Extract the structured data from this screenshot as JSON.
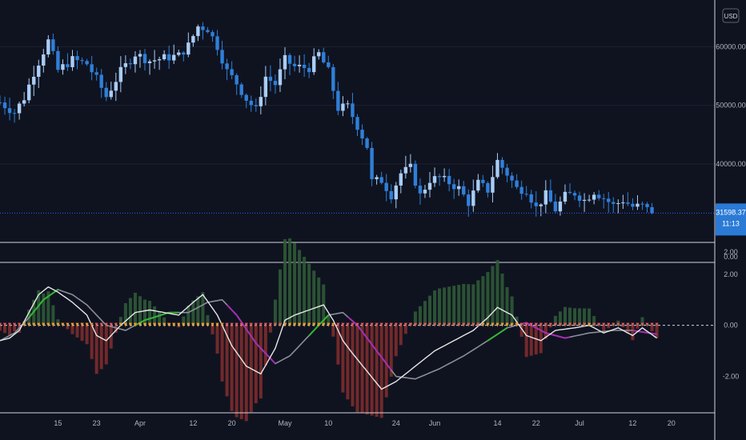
{
  "currency": "USD",
  "last_price": {
    "value": "31598.37",
    "countdown": "11:13"
  },
  "colors": {
    "background": "#0f1320",
    "candle_up": "#a9cdf5",
    "candle_down": "#2f7fd8",
    "price_line": "#2962ff",
    "price_tag_bg": "#2a7ad6",
    "signal_line": "#e6e6e6",
    "macd_bull": "#31b831",
    "macd_bear": "#a42fb0",
    "slow_line": "#8a8e98",
    "hist_up": "#2f5a36",
    "hist_down": "#7e2c2c",
    "dot_orange": "#f39c34",
    "dot_red": "#e05c5c",
    "grid": "#1c2030",
    "separator": "#d1d4dc"
  },
  "chart_data": [
    {
      "type": "candlestick",
      "name": "price",
      "y_ticks": [
        "60000.00",
        "50000.00",
        "40000.00"
      ],
      "y_tick_values": [
        60000,
        50000,
        40000
      ],
      "ylim": [
        27000,
        68000
      ],
      "x_ticks": [
        "15",
        "23",
        "Apr",
        "12",
        "20",
        "May",
        "10",
        "24",
        "Jun",
        "14",
        "22",
        "Jul",
        "12",
        "20"
      ],
      "x_tick_dates": [
        "2021-03-15",
        "2021-03-23",
        "2021-04-01",
        "2021-04-12",
        "2021-04-20",
        "2021-05-01",
        "2021-05-10",
        "2021-05-24",
        "2021-06-01",
        "2021-06-14",
        "2021-06-22",
        "2021-07-01",
        "2021-07-12",
        "2021-07-20"
      ],
      "x_range": [
        "2021-03-03",
        "2021-07-29"
      ],
      "close_anchors": [
        [
          "2021-03-03",
          50500
        ],
        [
          "2021-03-06",
          48800
        ],
        [
          "2021-03-08",
          51300
        ],
        [
          "2021-03-10",
          55600
        ],
        [
          "2021-03-13",
          61000
        ],
        [
          "2021-03-15",
          56000
        ],
        [
          "2021-03-18",
          57800
        ],
        [
          "2021-03-21",
          57100
        ],
        [
          "2021-03-23",
          54500
        ],
        [
          "2021-03-25",
          51500
        ],
        [
          "2021-03-28",
          55800
        ],
        [
          "2021-03-31",
          58800
        ],
        [
          "2021-04-03",
          57600
        ],
        [
          "2021-04-06",
          58100
        ],
        [
          "2021-04-09",
          58500
        ],
        [
          "2021-04-11",
          60200
        ],
        [
          "2021-04-13",
          63500
        ],
        [
          "2021-04-15",
          63100
        ],
        [
          "2021-04-17",
          60100
        ],
        [
          "2021-04-19",
          55800
        ],
        [
          "2021-04-21",
          53800
        ],
        [
          "2021-04-23",
          51100
        ],
        [
          "2021-04-25",
          49200
        ],
        [
          "2021-04-27",
          54900
        ],
        [
          "2021-04-29",
          53600
        ],
        [
          "2021-05-01",
          57800
        ],
        [
          "2021-05-03",
          56600
        ],
        [
          "2021-05-06",
          56400
        ],
        [
          "2021-05-08",
          58800
        ],
        [
          "2021-05-10",
          55800
        ],
        [
          "2021-05-12",
          49500
        ],
        [
          "2021-05-14",
          49800
        ],
        [
          "2021-05-16",
          46500
        ],
        [
          "2021-05-18",
          43000
        ],
        [
          "2021-05-19",
          37000
        ],
        [
          "2021-05-21",
          37200
        ],
        [
          "2021-05-23",
          34700
        ],
        [
          "2021-05-25",
          38400
        ],
        [
          "2021-05-27",
          39300
        ],
        [
          "2021-05-29",
          34600
        ],
        [
          "2021-05-31",
          37300
        ],
        [
          "2021-06-02",
          37600
        ],
        [
          "2021-06-04",
          36800
        ],
        [
          "2021-06-06",
          35800
        ],
        [
          "2021-06-08",
          33400
        ],
        [
          "2021-06-10",
          36700
        ],
        [
          "2021-06-12",
          35500
        ],
        [
          "2021-06-14",
          40500
        ],
        [
          "2021-06-16",
          38300
        ],
        [
          "2021-06-18",
          35800
        ],
        [
          "2021-06-20",
          35600
        ],
        [
          "2021-06-22",
          32500
        ],
        [
          "2021-06-24",
          34700
        ],
        [
          "2021-06-26",
          32200
        ],
        [
          "2021-06-28",
          34500
        ],
        [
          "2021-06-30",
          35000
        ],
        [
          "2021-07-02",
          33800
        ],
        [
          "2021-07-04",
          35300
        ],
        [
          "2021-07-06",
          34200
        ],
        [
          "2021-07-08",
          32900
        ],
        [
          "2021-07-10",
          33800
        ],
        [
          "2021-07-12",
          32700
        ],
        [
          "2021-07-14",
          32800
        ],
        [
          "2021-07-16",
          31600
        ]
      ],
      "last_value": 31598.37
    },
    {
      "type": "line+histogram",
      "name": "oscillator",
      "y_ticks": [
        "2.00",
        "0.00",
        "-2.00"
      ],
      "y_tick_values": [
        2,
        0,
        -2
      ],
      "ylim": [
        -3.3,
        2.4
      ],
      "zero_line": 0,
      "collapsed_pane_ticks": [
        "2.00",
        "0.00"
      ],
      "fast_line_anchors": [
        [
          "2021-03-03",
          -0.6
        ],
        [
          "2021-03-05",
          -0.5
        ],
        [
          "2021-03-07",
          -0.2
        ],
        [
          "2021-03-09",
          0.5
        ],
        [
          "2021-03-11",
          1.2
        ],
        [
          "2021-03-13",
          1.5
        ],
        [
          "2021-03-15",
          1.3
        ],
        [
          "2021-03-18",
          0.9
        ],
        [
          "2021-03-21",
          0.4
        ],
        [
          "2021-03-23",
          -0.4
        ],
        [
          "2021-03-25",
          -0.6
        ],
        [
          "2021-03-28",
          0.0
        ],
        [
          "2021-03-31",
          0.5
        ],
        [
          "2021-04-03",
          0.6
        ],
        [
          "2021-04-06",
          0.5
        ],
        [
          "2021-04-09",
          0.4
        ],
        [
          "2021-04-12",
          0.9
        ],
        [
          "2021-04-14",
          1.2
        ],
        [
          "2021-04-17",
          0.4
        ],
        [
          "2021-04-20",
          -0.8
        ],
        [
          "2021-04-23",
          -1.6
        ],
        [
          "2021-04-26",
          -1.9
        ],
        [
          "2021-04-29",
          -0.9
        ],
        [
          "2021-05-01",
          0.2
        ],
        [
          "2021-05-03",
          0.4
        ],
        [
          "2021-05-06",
          0.6
        ],
        [
          "2021-05-09",
          0.8
        ],
        [
          "2021-05-11",
          0.2
        ],
        [
          "2021-05-13",
          -0.6
        ],
        [
          "2021-05-15",
          -1.1
        ],
        [
          "2021-05-18",
          -1.8
        ],
        [
          "2021-05-21",
          -2.5
        ],
        [
          "2021-05-24",
          -2.2
        ],
        [
          "2021-05-28",
          -1.6
        ],
        [
          "2021-06-01",
          -1.0
        ],
        [
          "2021-06-05",
          -0.6
        ],
        [
          "2021-06-09",
          -0.2
        ],
        [
          "2021-06-12",
          0.3
        ],
        [
          "2021-06-14",
          0.7
        ],
        [
          "2021-06-17",
          0.4
        ],
        [
          "2021-06-20",
          -0.4
        ],
        [
          "2021-06-23",
          -0.6
        ],
        [
          "2021-06-26",
          -0.2
        ],
        [
          "2021-06-30",
          -0.1
        ],
        [
          "2021-07-03",
          0.0
        ],
        [
          "2021-07-06",
          -0.3
        ],
        [
          "2021-07-09",
          -0.1
        ],
        [
          "2021-07-12",
          -0.4
        ],
        [
          "2021-07-14",
          -0.1
        ],
        [
          "2021-07-17",
          -0.5
        ]
      ],
      "slow_line_anchors": [
        [
          "2021-03-03",
          -0.6
        ],
        [
          "2021-03-06",
          -0.3
        ],
        [
          "2021-03-09",
          0.3
        ],
        [
          "2021-03-12",
          1.0
        ],
        [
          "2021-03-15",
          1.4
        ],
        [
          "2021-03-18",
          1.2
        ],
        [
          "2021-03-21",
          0.8
        ],
        [
          "2021-03-25",
          0.0
        ],
        [
          "2021-03-29",
          -0.2
        ],
        [
          "2021-04-02",
          0.2
        ],
        [
          "2021-04-07",
          0.5
        ],
        [
          "2021-04-11",
          0.5
        ],
        [
          "2021-04-15",
          0.9
        ],
        [
          "2021-04-18",
          1.0
        ],
        [
          "2021-04-21",
          0.4
        ],
        [
          "2021-04-25",
          -0.7
        ],
        [
          "2021-04-29",
          -1.5
        ],
        [
          "2021-05-02",
          -1.2
        ],
        [
          "2021-05-06",
          -0.4
        ],
        [
          "2021-05-10",
          0.4
        ],
        [
          "2021-05-13",
          0.5
        ],
        [
          "2021-05-16",
          0.0
        ],
        [
          "2021-05-20",
          -1.0
        ],
        [
          "2021-05-24",
          -2.0
        ],
        [
          "2021-05-28",
          -2.1
        ],
        [
          "2021-06-02",
          -1.7
        ],
        [
          "2021-06-07",
          -1.2
        ],
        [
          "2021-06-12",
          -0.6
        ],
        [
          "2021-06-16",
          -0.1
        ],
        [
          "2021-06-20",
          0.1
        ],
        [
          "2021-06-24",
          -0.3
        ],
        [
          "2021-06-28",
          -0.5
        ],
        [
          "2021-07-03",
          -0.3
        ],
        [
          "2021-07-08",
          -0.2
        ],
        [
          "2021-07-12",
          -0.2
        ],
        [
          "2021-07-17",
          -0.35
        ]
      ],
      "bull_segments": [
        [
          "2021-03-09",
          "2021-03-15"
        ],
        [
          "2021-03-31",
          "2021-04-09"
        ],
        [
          "2021-05-06",
          "2021-05-10"
        ],
        [
          "2021-06-12",
          "2021-06-16"
        ]
      ],
      "bear_segments": [
        [
          "2021-04-19",
          "2021-04-29"
        ],
        [
          "2021-05-14",
          "2021-05-23"
        ],
        [
          "2021-06-19",
          "2021-06-29"
        ],
        [
          "2021-07-12",
          "2021-07-17"
        ]
      ]
    }
  ]
}
